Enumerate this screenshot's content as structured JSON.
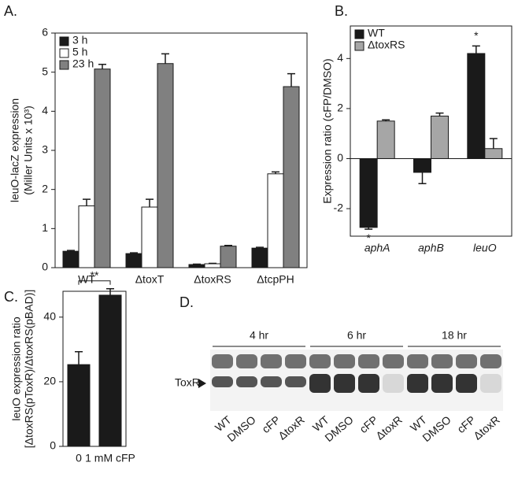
{
  "chart_data": [
    {
      "type": "bar",
      "panel": "A.",
      "ylabel": [
        "leuO-lacZ expression",
        "(Miller Units x 10³)"
      ],
      "categories": [
        "WT",
        "ΔtoxT",
        "ΔtoxRS",
        "ΔtcpPH"
      ],
      "series": [
        {
          "name": "3 h",
          "color": "#1a1a1a",
          "values": [
            0.42,
            0.36,
            0.08,
            0.5
          ],
          "errors": [
            0.02,
            0.02,
            0.01,
            0.02
          ]
        },
        {
          "name": "5 h",
          "color": "#ffffff",
          "values": [
            1.58,
            1.55,
            0.1,
            2.4
          ],
          "errors": [
            0.17,
            0.2,
            0.01,
            0.05
          ]
        },
        {
          "name": "23 h",
          "color": "#808080",
          "values": [
            5.08,
            5.22,
            0.55,
            4.63
          ],
          "errors": [
            0.12,
            0.25,
            0.02,
            0.33
          ]
        }
      ],
      "ylim": [
        0,
        6
      ],
      "yticks": [
        0,
        1,
        2,
        3,
        4,
        5,
        6
      ],
      "legend": "upper-left"
    },
    {
      "type": "bar",
      "panel": "B.",
      "ylabel": [
        "Expression ratio (cFP/DMSO)"
      ],
      "categories": [
        "aphA",
        "aphB",
        "leuO"
      ],
      "series": [
        {
          "name": "WT",
          "color": "#1a1a1a",
          "values": [
            -2.75,
            -0.55,
            4.2
          ],
          "errors": [
            0.07,
            0.45,
            0.3
          ]
        },
        {
          "name": "ΔtoxRS",
          "color": "#a6a6a6",
          "values": [
            1.5,
            1.7,
            0.4
          ],
          "errors": [
            0.05,
            0.12,
            0.4
          ]
        }
      ],
      "annotations": [
        "*",
        "*"
      ],
      "ylim": [
        -3.1,
        5.3
      ],
      "yticks": [
        -2,
        0,
        2,
        4
      ],
      "legend": "upper-left"
    },
    {
      "type": "bar",
      "panel": "C.",
      "ylabel": [
        "leuO expression ratio",
        "[ΔtoxRS(pToxR)/ΔtoxRS(pBAD)]"
      ],
      "categories": [
        "0",
        "1 mM cFP"
      ],
      "series": [
        {
          "color": "#1a1a1a",
          "values": [
            25.3,
            46.8
          ],
          "errors": [
            4,
            2
          ]
        }
      ],
      "significance": "**",
      "ylim": [
        0,
        48
      ],
      "yticks": [
        0,
        20,
        40
      ]
    }
  ],
  "blot": {
    "panel": "D.",
    "groups": [
      "4 hr",
      "6 hr",
      "18 hr"
    ],
    "band_label": "ToxR",
    "lanes": [
      "WT",
      "DMSO",
      "cFP",
      "ΔtoxR",
      "WT",
      "DMSO",
      "cFP",
      "ΔtoxR",
      "WT",
      "DMSO",
      "cFP",
      "ΔtoxR"
    ]
  }
}
